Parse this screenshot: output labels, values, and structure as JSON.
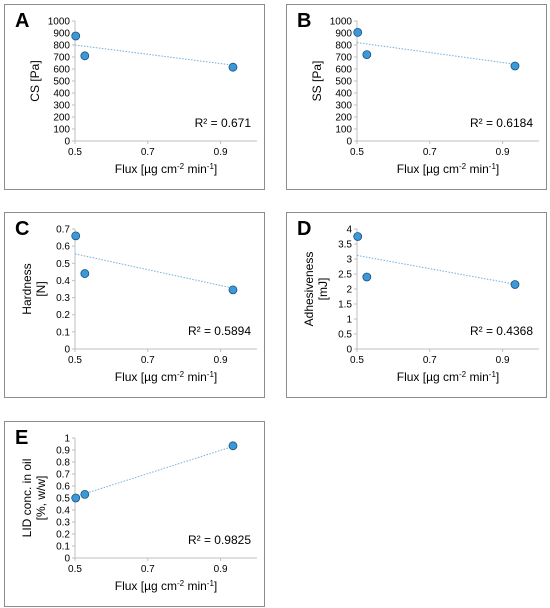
{
  "chart_data": [
    {
      "panel": "A",
      "type": "scatter",
      "ylabel": "CS [Pa]",
      "ylabel_lines": [
        "CS [Pa]"
      ],
      "xlabel": "Flux [µg cm-2 min-1]",
      "xlim": [
        0.5,
        1.0
      ],
      "xticks": [
        "0.5",
        "0.7",
        "0.9"
      ],
      "ylim": [
        0,
        1000
      ],
      "yticks": [
        "0",
        "100",
        "200",
        "300",
        "400",
        "500",
        "600",
        "700",
        "800",
        "900",
        "1000"
      ],
      "points": [
        [
          0.502,
          875
        ],
        [
          0.527,
          710
        ],
        [
          0.934,
          615
        ]
      ],
      "trendline": [
        [
          0.5,
          800
        ],
        [
          0.934,
          632
        ]
      ],
      "r2": "R² = 0.671"
    },
    {
      "panel": "B",
      "type": "scatter",
      "ylabel": "SS [Pa]",
      "ylabel_lines": [
        "SS [Pa]"
      ],
      "xlabel": "Flux [µg cm-2 min-1]",
      "xlim": [
        0.5,
        1.0
      ],
      "xticks": [
        "0.5",
        "0.7",
        "0.9"
      ],
      "ylim": [
        0,
        1000
      ],
      "yticks": [
        "0",
        "100",
        "200",
        "300",
        "400",
        "500",
        "600",
        "700",
        "800",
        "900",
        "1000"
      ],
      "points": [
        [
          0.502,
          905
        ],
        [
          0.527,
          720
        ],
        [
          0.934,
          625
        ]
      ],
      "trendline": [
        [
          0.5,
          820
        ],
        [
          0.934,
          640
        ]
      ],
      "r2": "R² = 0.6184"
    },
    {
      "panel": "C",
      "type": "scatter",
      "ylabel": "Hardness [N]",
      "ylabel_lines": [
        "Hardness",
        "[N]"
      ],
      "xlabel": "Flux [µg cm-2 min-1]",
      "xlim": [
        0.5,
        1.0
      ],
      "xticks": [
        "0.5",
        "0.7",
        "0.9"
      ],
      "ylim": [
        0,
        0.7
      ],
      "yticks": [
        "0",
        "0.1",
        "0.2",
        "0.3",
        "0.4",
        "0.5",
        "0.6",
        "0.7"
      ],
      "points": [
        [
          0.502,
          0.66
        ],
        [
          0.527,
          0.44
        ],
        [
          0.934,
          0.345
        ]
      ],
      "trendline": [
        [
          0.5,
          0.555
        ],
        [
          0.934,
          0.355
        ]
      ],
      "r2": "R² = 0.5894"
    },
    {
      "panel": "D",
      "type": "scatter",
      "ylabel": "Adhesiveness [mJ]",
      "ylabel_lines": [
        "Adhesiveness",
        "[mJ]"
      ],
      "xlabel": "Flux [µg cm-2 min-1]",
      "xlim": [
        0.5,
        1.0
      ],
      "xticks": [
        "0.5",
        "0.7",
        "0.9"
      ],
      "ylim": [
        0,
        4
      ],
      "yticks": [
        "0",
        "0.5",
        "1",
        "1.5",
        "2",
        "2.5",
        "3",
        "3.5",
        "4"
      ],
      "points": [
        [
          0.502,
          3.75
        ],
        [
          0.527,
          2.4
        ],
        [
          0.934,
          2.15
        ]
      ],
      "trendline": [
        [
          0.5,
          3.12
        ],
        [
          0.934,
          2.16
        ]
      ],
      "r2": "R² = 0.4368"
    },
    {
      "panel": "E",
      "type": "scatter",
      "ylabel": "LID conc. in oil [%, w/w]",
      "ylabel_lines": [
        "LID conc. in oil",
        "[%, w/w]"
      ],
      "xlabel": "Flux [µg cm-2 min-1]",
      "xlim": [
        0.5,
        1.0
      ],
      "xticks": [
        "0.5",
        "0.7",
        "0.9"
      ],
      "ylim": [
        0,
        1
      ],
      "yticks": [
        "0",
        "0.1",
        "0.2",
        "0.3",
        "0.4",
        "0.5",
        "0.6",
        "0.7",
        "0.8",
        "0.9",
        "1"
      ],
      "points": [
        [
          0.502,
          0.5
        ],
        [
          0.527,
          0.53
        ],
        [
          0.934,
          0.935
        ]
      ],
      "trendline": [
        [
          0.5,
          0.51
        ],
        [
          0.934,
          0.93
        ]
      ],
      "r2": "R² = 0.9825"
    }
  ],
  "colors": {
    "marker_fill": "#3a9ad9",
    "marker_stroke": "#1f4e79",
    "trendline": "#6fb0e0",
    "axis": "#bfbfbf"
  }
}
